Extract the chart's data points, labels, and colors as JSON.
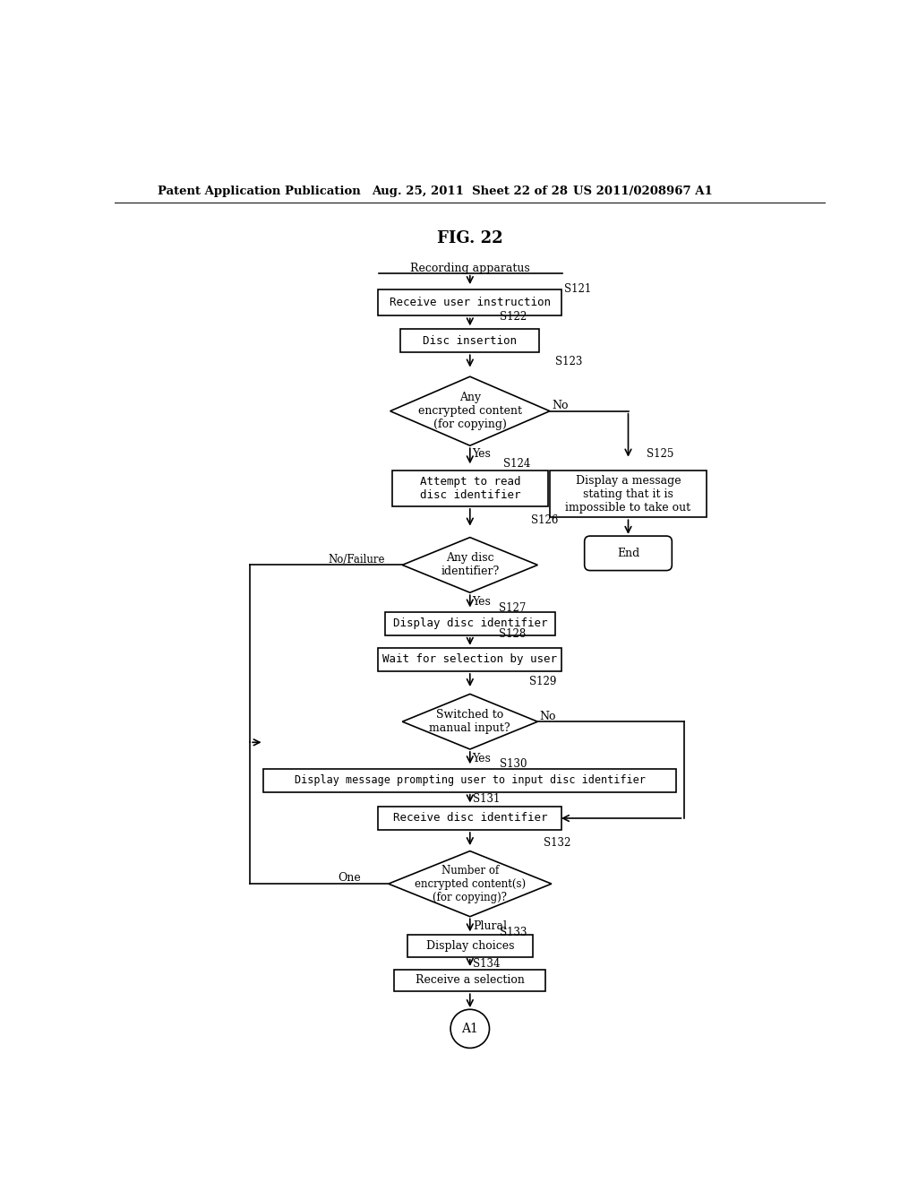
{
  "title": "FIG. 22",
  "header_left": "Patent Application Publication",
  "header_mid": "Aug. 25, 2011  Sheet 22 of 28",
  "header_right": "US 2011/0208967 A1",
  "bg_color": "#ffffff",
  "font": "DejaVu Serif",
  "lw": 1.2
}
